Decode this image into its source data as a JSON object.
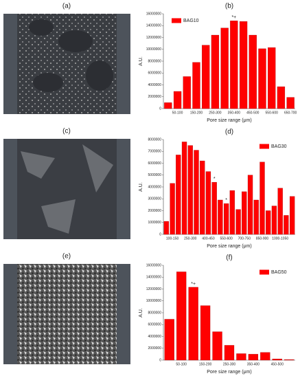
{
  "image_labels": [
    "(a)",
    "(c)",
    "(e)"
  ],
  "chart_data": [
    {
      "type": "bar",
      "title": "(b)",
      "xlabel": "Pore size range (μm)",
      "ylabel": "A.U.",
      "categories": [
        null,
        "50-100",
        null,
        "150-200",
        null,
        "250-300",
        null,
        "350-400",
        null,
        "450-500",
        null,
        "550-600",
        null,
        "650-700"
      ],
      "series": [
        {
          "name": "BAG10",
          "color": "#ff0000",
          "values": [
            1000000,
            2900000,
            5400000,
            7800000,
            10700000,
            12400000,
            13600000,
            14800000,
            14700000,
            12400000,
            10100000,
            10300000,
            3700000,
            1900000
          ]
        }
      ],
      "annotations": [
        {
          "text": "*+",
          "bar": 7
        }
      ],
      "ylim": [
        0,
        16000000
      ],
      "yticks": [
        0,
        2000000,
        4000000,
        6000000,
        8000000,
        10000000,
        12000000,
        14000000,
        16000000
      ],
      "legend": "upper left"
    },
    {
      "type": "bar",
      "title": "(d)",
      "xlabel": "Pore size range (μm)",
      "ylabel": "A.U.",
      "categories": [
        null,
        "100-150",
        null,
        null,
        "250-300",
        null,
        null,
        "400-450",
        null,
        null,
        "550-600",
        null,
        null,
        "700-750",
        null,
        null,
        "850-900",
        null,
        null,
        "1000-1050",
        null,
        null
      ],
      "series": [
        {
          "name": "BAG30",
          "color": "#ff0000",
          "values": [
            1100000,
            4300000,
            6700000,
            7800000,
            7500000,
            7100000,
            6200000,
            5300000,
            4400000,
            2900000,
            2600000,
            3700000,
            2100000,
            3600000,
            5000000,
            2900000,
            6100000,
            2000000,
            2400000,
            3900000,
            1600000,
            3200000
          ]
        }
      ],
      "annotations": [
        {
          "text": "*",
          "bar": 8
        },
        {
          "text": "*",
          "bar": 10
        }
      ],
      "ylim": [
        0,
        8000000
      ],
      "yticks": [
        0,
        1000000,
        2000000,
        3000000,
        4000000,
        5000000,
        6000000,
        7000000,
        8000000
      ],
      "legend": "upper right"
    },
    {
      "type": "bar",
      "title": "(f)",
      "xlabel": "Pore size range (μm)",
      "ylabel": "A.U.",
      "categories": [
        null,
        "50-100",
        null,
        "150-200",
        null,
        "250-300",
        null,
        "350-400",
        null,
        "450-500",
        null
      ],
      "series": [
        {
          "name": "BAG50",
          "color": "#ff0000",
          "values": [
            6900000,
            14900000,
            12300000,
            9200000,
            4800000,
            2500000,
            1100000,
            1000000,
            1300000,
            200000,
            100000
          ]
        }
      ],
      "annotations": [
        {
          "text": "*+",
          "bar": 2
        }
      ],
      "ylim": [
        0,
        16000000
      ],
      "yticks": [
        0,
        2000000,
        4000000,
        6000000,
        8000000,
        10000000,
        12000000,
        14000000,
        16000000
      ],
      "legend": "upper right"
    }
  ]
}
